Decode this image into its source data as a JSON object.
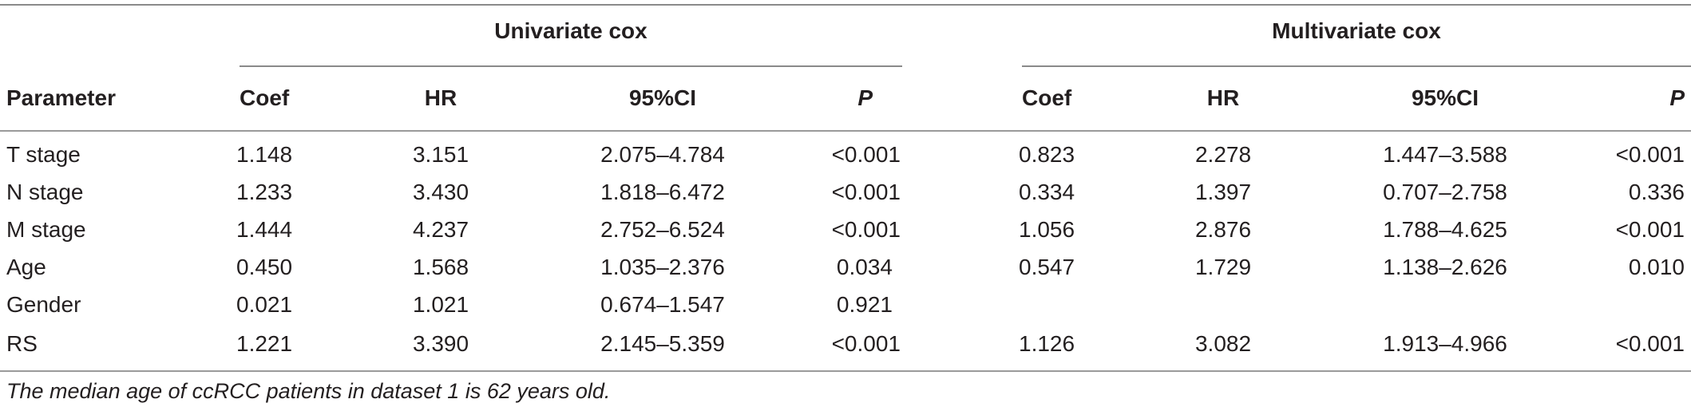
{
  "table": {
    "group_headers": {
      "univariate": "Univariate cox",
      "multivariate": "Multivariate cox"
    },
    "column_headers": {
      "parameter": "Parameter",
      "uni_coef": "Coef",
      "uni_hr": "HR",
      "uni_ci": "95%CI",
      "uni_p": "P",
      "multi_coef": "Coef",
      "multi_hr": "HR",
      "multi_ci": "95%CI",
      "multi_p": "P"
    },
    "rows": [
      {
        "parameter": "T stage",
        "uni_coef": "1.148",
        "uni_hr": "3.151",
        "uni_ci": "2.075–4.784",
        "uni_p": "<0.001",
        "multi_coef": "0.823",
        "multi_hr": "2.278",
        "multi_ci": "1.447–3.588",
        "multi_p": "<0.001"
      },
      {
        "parameter": "N stage",
        "uni_coef": "1.233",
        "uni_hr": "3.430",
        "uni_ci": "1.818–6.472",
        "uni_p": "<0.001",
        "multi_coef": "0.334",
        "multi_hr": "1.397",
        "multi_ci": "0.707–2.758",
        "multi_p": "0.336"
      },
      {
        "parameter": "M stage",
        "uni_coef": "1.444",
        "uni_hr": "4.237",
        "uni_ci": "2.752–6.524",
        "uni_p": "<0.001",
        "multi_coef": "1.056",
        "multi_hr": "2.876",
        "multi_ci": "1.788–4.625",
        "multi_p": "<0.001"
      },
      {
        "parameter": "Age",
        "uni_coef": "0.450",
        "uni_hr": "1.568",
        "uni_ci": "1.035–2.376",
        "uni_p": "0.034",
        "multi_coef": "0.547",
        "multi_hr": "1.729",
        "multi_ci": "1.138–2.626",
        "multi_p": "0.010"
      },
      {
        "parameter": "Gender",
        "uni_coef": "0.021",
        "uni_hr": "1.021",
        "uni_ci": "0.674–1.547",
        "uni_p": "0.921",
        "multi_coef": "",
        "multi_hr": "",
        "multi_ci": "",
        "multi_p": ""
      },
      {
        "parameter": "RS",
        "uni_coef": "1.221",
        "uni_hr": "3.390",
        "uni_ci": "2.145–5.359",
        "uni_p": "<0.001",
        "multi_coef": "1.126",
        "multi_hr": "3.082",
        "multi_ci": "1.913–4.966",
        "multi_p": "<0.001"
      }
    ]
  },
  "footnote": "The median age of ccRCC patients in dataset 1 is 62 years old."
}
